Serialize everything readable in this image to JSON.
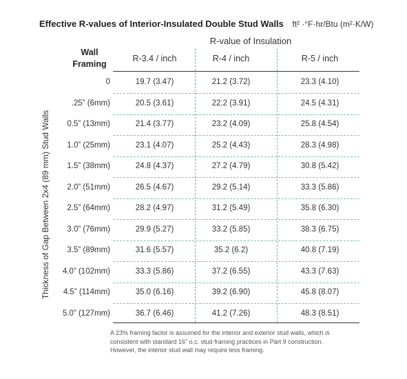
{
  "title": "Effective R-values of Interior-Insulated Double Stud Walls",
  "units": "ft² ·°F·hr/Btu (m²·K/W)",
  "group_header": "R-value of Insulation",
  "row_header": [
    "Wall",
    "Framing"
  ],
  "axis_label": "Thickness of Gap Between 2x4 (89 mm) Stud Walls",
  "columns": [
    "R-3.4 / inch",
    "R-4 / inch",
    "R-5 / inch"
  ],
  "rows": [
    {
      "label": "0",
      "values": [
        "19.7 (3.47)",
        "21.2 (3.72)",
        "23.3 (4.10)"
      ]
    },
    {
      "label": ".25” (6mm)",
      "values": [
        "20.5 (3.61)",
        "22.2 (3.91)",
        "24.5 (4.31)"
      ]
    },
    {
      "label": "0.5” (13mm)",
      "values": [
        "21.4 (3.77)",
        "23.2 (4.09)",
        "25.8 (4.54)"
      ]
    },
    {
      "label": "1.0” (25mm)",
      "values": [
        "23.1 (4.07)",
        "25.2 (4.43)",
        "28.3 (4.98)"
      ]
    },
    {
      "label": "1.5” (38mm)",
      "values": [
        "24.8 (4.37)",
        "27.2 (4.79)",
        "30.8 (5.42)"
      ]
    },
    {
      "label": "2.0” (51mm)",
      "values": [
        "26.5 (4.67)",
        "29.2 (5.14)",
        "33.3 (5.86)"
      ]
    },
    {
      "label": "2.5” (64mm)",
      "values": [
        "28.2 (4.97)",
        "31.2 (5.49)",
        "35.8 (6.30)"
      ]
    },
    {
      "label": "3.0” (76mm)",
      "values": [
        "29.9 (5.27)",
        "33.2 (5.85)",
        "38.3 (6.75)"
      ]
    },
    {
      "label": "3.5” (89mm)",
      "values": [
        "31.6 (5.57)",
        "35.2 (6.2)",
        "40.8 (7.19)"
      ]
    },
    {
      "label": "4.0” (102mm)",
      "values": [
        "33.3 (5.86)",
        "37.2 (6.55)",
        "43.3 (7.63)"
      ]
    },
    {
      "label": "4.5” (114mm)",
      "values": [
        "35.0 (6.16)",
        "39.2 (6.90)",
        "45.8 (8.07)"
      ]
    },
    {
      "label": "5.0” (127mm)",
      "values": [
        "36.7 (6.46)",
        "41.2 (7.26)",
        "48.3 (8.51)"
      ]
    }
  ],
  "footnote": [
    "A 23% framing factor is assumed for the interior and exterior stud walls, which is",
    "consistent with standard 16” o.c. stud framing practices in Part 9 construction.",
    "However, the interior stud wall may require less framing."
  ],
  "colors": {
    "text": "#222222",
    "rule": "#333333",
    "dashed_rule": "#7cbfb3"
  }
}
